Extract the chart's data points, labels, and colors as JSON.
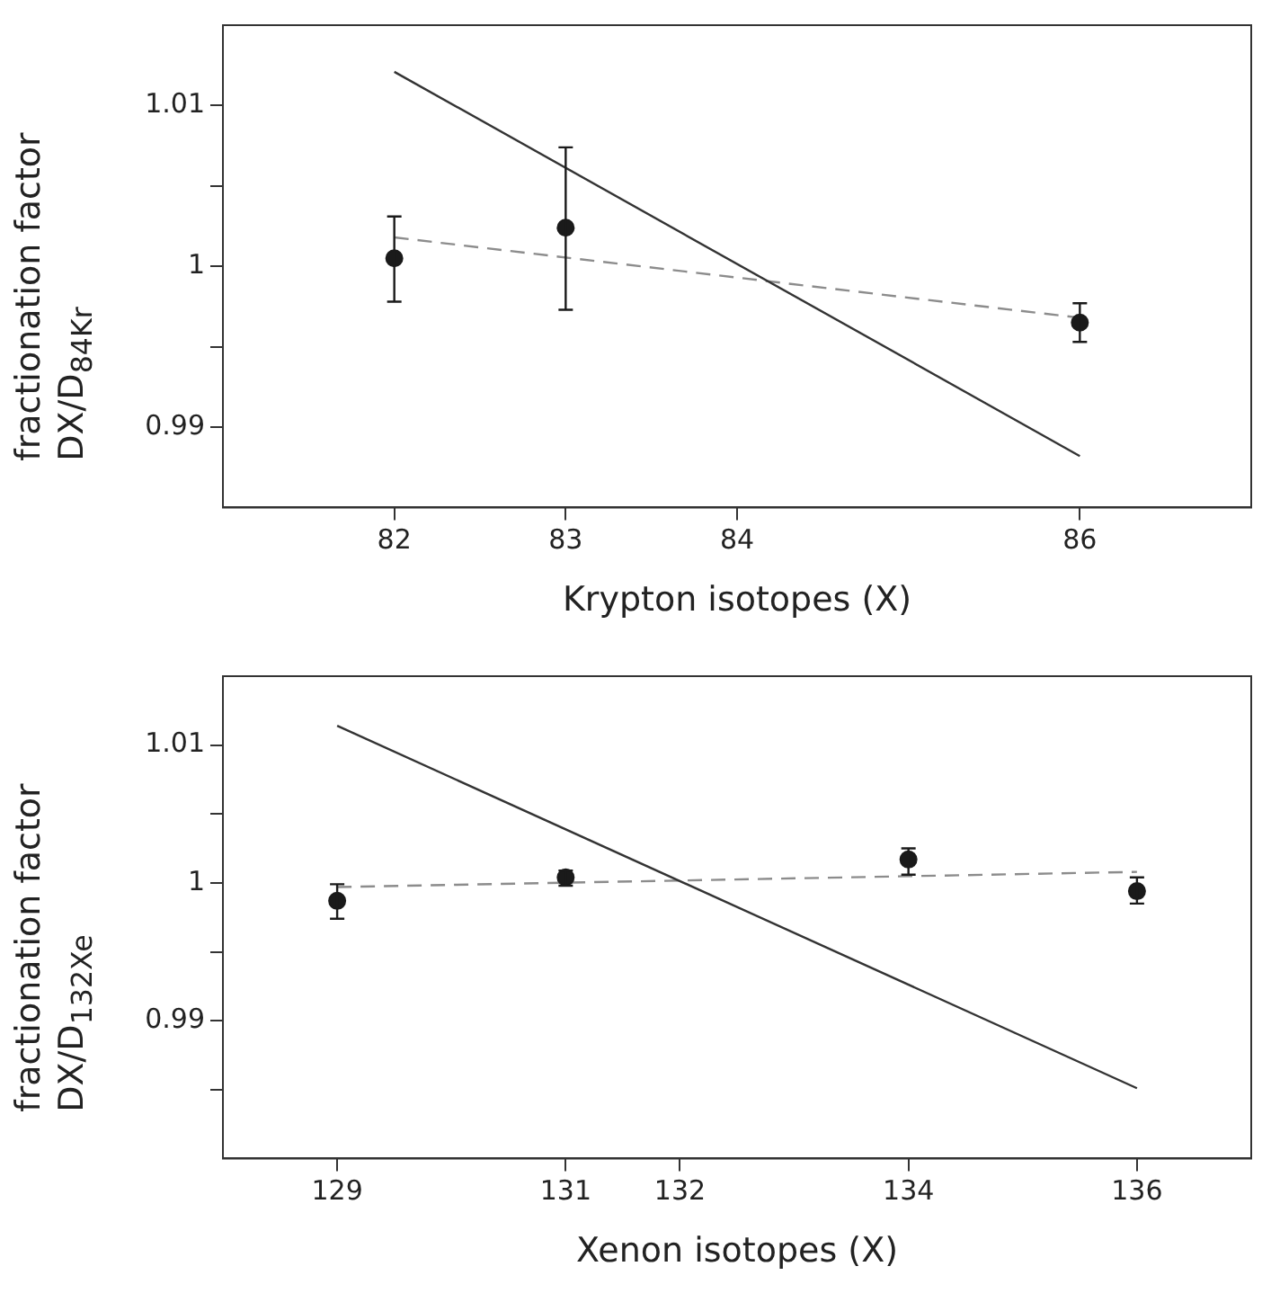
{
  "chart_data": [
    {
      "type": "scatter",
      "xlabel": "Krypton isotopes (X)",
      "ylabel": "fractionation factor\nDX/D$_{84Kr}$",
      "xlim": [
        81,
        87
      ],
      "xticks": [
        82,
        83,
        84,
        86
      ],
      "ylim": [
        0.985,
        1.015
      ],
      "yticks": [
        0.99,
        {
          "value": 0.995,
          "label": null
        },
        1,
        {
          "value": 1.005,
          "label": null
        },
        1.01
      ],
      "grid": false,
      "legend": false,
      "series": [
        {
          "type": "line",
          "color": "#333333",
          "x": [
            82,
            86
          ],
          "values": [
            1.0121,
            0.9882
          ],
          "marker": "none",
          "line_style": "solid"
        },
        {
          "type": "line",
          "color": "#8c8c8c",
          "x": [
            82,
            86
          ],
          "values": [
            1.0018,
            0.9968
          ],
          "marker": "none",
          "line_style": "dashed"
        },
        {
          "color": "#1a1a1a",
          "x": [
            82,
            83,
            86
          ],
          "values": [
            1.0005,
            1.0024,
            0.9965
          ],
          "errors": [
            [
              0.9978,
              1.0031
            ],
            [
              0.9973,
              1.0074
            ],
            [
              0.9953,
              0.9977
            ]
          ],
          "marker": "circle"
        }
      ]
    },
    {
      "type": "scatter",
      "xlabel": "Xenon isotopes (X)",
      "ylabel": "fractionation factor\nDX/D$_{132Xe}$",
      "xlim": [
        128,
        137
      ],
      "xticks": [
        129,
        131,
        132,
        134,
        136
      ],
      "ylim": [
        0.98,
        1.015
      ],
      "yticks": [
        {
          "value": 0.985,
          "label": null
        },
        0.99,
        {
          "value": 0.995,
          "label": null
        },
        1,
        {
          "value": 1.005,
          "label": null
        },
        1.01
      ],
      "grid": false,
      "legend": false,
      "series": [
        {
          "type": "line",
          "color": "#333333",
          "x": [
            129,
            136
          ],
          "values": [
            1.0114,
            0.9851
          ],
          "marker": "none",
          "line_style": "solid"
        },
        {
          "type": "line",
          "color": "#8c8c8c",
          "x": [
            129,
            136
          ],
          "values": [
            0.9997,
            1.0008
          ],
          "marker": "none",
          "line_style": "dashed"
        },
        {
          "color": "#1a1a1a",
          "x": [
            129,
            131,
            134,
            136
          ],
          "values": [
            0.9987,
            1.0004,
            1.0017,
            0.9994
          ],
          "errors": [
            [
              0.9974,
              0.9999
            ],
            [
              0.9998,
              1.0009
            ],
            [
              1.0006,
              1.0025
            ],
            [
              0.9985,
              1.0004
            ]
          ],
          "marker": "circle"
        }
      ]
    }
  ]
}
